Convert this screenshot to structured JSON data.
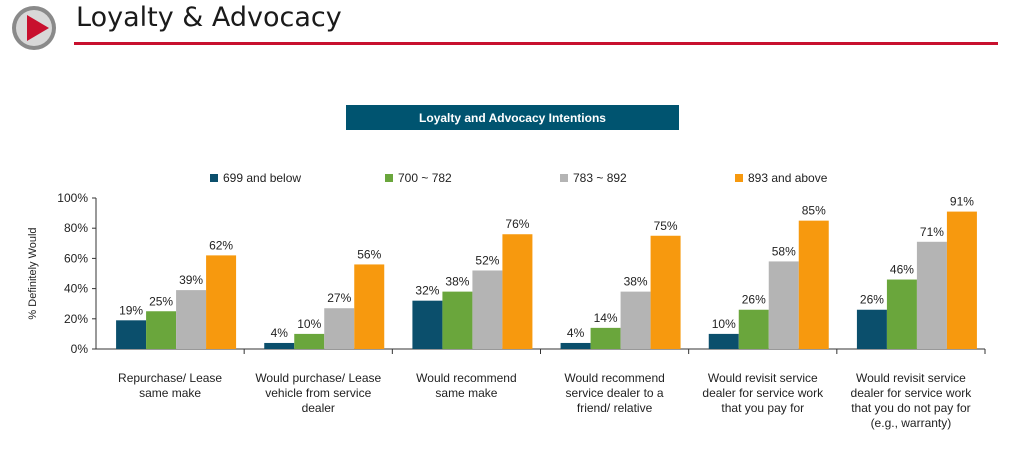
{
  "header": {
    "title": "Loyalty & Advocacy",
    "accent_color": "#c8102e"
  },
  "chart_data": {
    "type": "bar",
    "title": "Loyalty and Advocacy Intentions",
    "ylabel": "% Definitely Would",
    "ylim": [
      0,
      100
    ],
    "y_ticks": [
      "0%",
      "20%",
      "40%",
      "60%",
      "80%",
      "100%"
    ],
    "grid": false,
    "legend_position": "top",
    "categories": [
      [
        "Repurchase/ Lease",
        "same make"
      ],
      [
        "Would purchase/ Lease",
        "vehicle from service",
        "dealer"
      ],
      [
        "Would recommend",
        "same make"
      ],
      [
        "Would recommend",
        "service dealer to a",
        "friend/ relative"
      ],
      [
        "Would revisit service",
        "dealer for service work",
        "that you pay for"
      ],
      [
        "Would revisit service",
        "dealer for service work",
        "that you do not pay for",
        "(e.g., warranty)"
      ]
    ],
    "series": [
      {
        "name": "699 and below",
        "color": "#0b4f6c",
        "values": [
          19,
          4,
          32,
          4,
          10,
          26
        ],
        "labels": [
          "19%",
          "4%",
          "32%",
          "4%",
          "10%",
          "26%"
        ]
      },
      {
        "name": "700 ~ 782",
        "color": "#6aa63c",
        "values": [
          25,
          10,
          38,
          14,
          26,
          46
        ],
        "labels": [
          "25%",
          "10%",
          "38%",
          "14%",
          "26%",
          "46%"
        ]
      },
      {
        "name": "783 ~ 892",
        "color": "#b4b4b4",
        "values": [
          39,
          27,
          52,
          38,
          58,
          71
        ],
        "labels": [
          "39%",
          "27%",
          "52%",
          "38%",
          "58%",
          "71%"
        ]
      },
      {
        "name": "893 and above",
        "color": "#f7990e",
        "values": [
          62,
          56,
          76,
          75,
          85,
          91
        ],
        "labels": [
          "62%",
          "56%",
          "76%",
          "75%",
          "85%",
          "91%"
        ]
      }
    ]
  }
}
